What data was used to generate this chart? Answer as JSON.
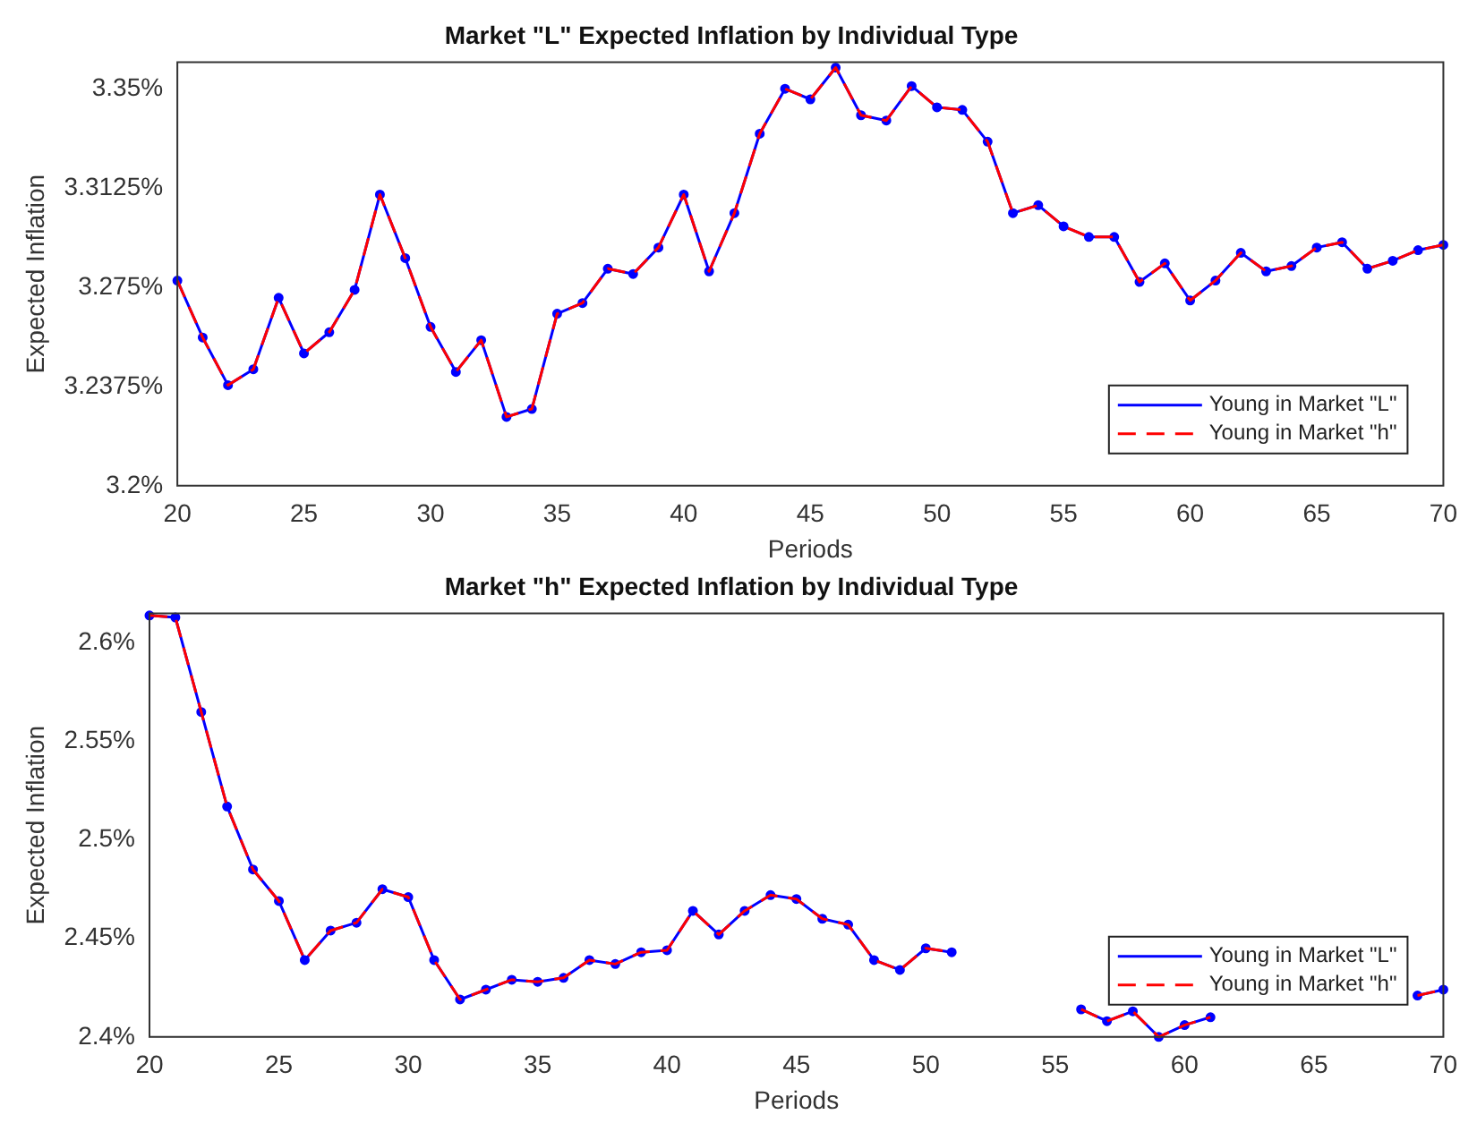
{
  "chart_data": [
    {
      "type": "line",
      "title": "Market \"L\" Expected Inflation by Individual Type",
      "xlabel": "Periods",
      "ylabel": "Expected Inflation",
      "x": [
        20,
        21,
        22,
        23,
        24,
        25,
        26,
        27,
        28,
        29,
        30,
        31,
        32,
        33,
        34,
        35,
        36,
        37,
        38,
        39,
        40,
        41,
        42,
        43,
        44,
        45,
        46,
        47,
        48,
        49,
        50,
        51,
        52,
        53,
        54,
        55,
        56,
        57,
        58,
        59,
        60,
        61,
        62,
        63,
        64,
        65,
        66,
        67,
        68,
        69,
        70
      ],
      "series": [
        {
          "name": "Young in Market \"L\"",
          "color": "#0000ff",
          "marker": "circle",
          "line_style": "solid",
          "values": [
            3.2775,
            3.256,
            3.238,
            3.244,
            3.271,
            3.25,
            3.258,
            3.274,
            3.31,
            3.286,
            3.26,
            3.243,
            3.255,
            3.226,
            3.229,
            3.265,
            3.269,
            3.282,
            3.28,
            3.29,
            3.31,
            3.281,
            3.303,
            3.333,
            3.35,
            3.346,
            3.358,
            3.34,
            3.338,
            3.351,
            3.343,
            3.342,
            3.33,
            3.303,
            3.306,
            3.298,
            3.294,
            3.294,
            3.277,
            3.284,
            3.27,
            3.2775,
            3.288,
            3.281,
            3.283,
            3.29,
            3.292,
            3.282,
            3.285,
            3.289,
            3.291
          ]
        },
        {
          "name": "Young in Market \"h\"",
          "color": "#ff0000",
          "marker": "none",
          "line_style": "dashed",
          "values": [
            3.2775,
            3.256,
            3.238,
            3.244,
            3.271,
            3.25,
            3.258,
            3.274,
            3.31,
            3.286,
            3.26,
            3.243,
            3.255,
            3.226,
            3.229,
            3.265,
            3.269,
            3.282,
            3.28,
            3.29,
            3.31,
            3.281,
            3.303,
            3.333,
            3.35,
            3.346,
            3.358,
            3.34,
            3.338,
            3.351,
            3.343,
            3.342,
            3.33,
            3.303,
            3.306,
            3.298,
            3.294,
            3.294,
            3.277,
            3.284,
            3.27,
            3.2775,
            3.288,
            3.281,
            3.283,
            3.29,
            3.292,
            3.282,
            3.285,
            3.289,
            3.291
          ]
        }
      ],
      "xlim": [
        20,
        70
      ],
      "xticks": [
        20,
        25,
        30,
        35,
        40,
        45,
        50,
        55,
        60,
        65,
        70
      ],
      "ylim": [
        3.2,
        3.36
      ],
      "yticks": [
        {
          "value": 3.2,
          "label": "3.2%"
        },
        {
          "value": 3.2375,
          "label": "3.2375%"
        },
        {
          "value": 3.275,
          "label": "3.275%"
        },
        {
          "value": 3.3125,
          "label": "3.3125%"
        },
        {
          "value": 3.35,
          "label": "3.35%"
        }
      ],
      "grid": false,
      "legend": "bottom right"
    },
    {
      "type": "line",
      "title": "Market \"h\" Expected Inflation by Individual Type",
      "xlabel": "Periods",
      "ylabel": "Expected Inflation",
      "x": [
        20,
        21,
        22,
        23,
        24,
        25,
        26,
        27,
        28,
        29,
        30,
        31,
        32,
        33,
        34,
        35,
        36,
        37,
        38,
        39,
        40,
        41,
        42,
        43,
        44,
        45,
        46,
        47,
        48,
        49,
        50,
        51,
        52,
        53,
        54,
        55,
        56,
        57,
        58,
        59,
        60,
        61,
        62,
        63,
        64,
        65,
        66,
        67,
        68,
        69,
        70
      ],
      "series": [
        {
          "name": "Young in Market \"L\"",
          "color": "#0000ff",
          "marker": "circle",
          "line_style": "solid",
          "values": [
            2.614,
            2.613,
            2.565,
            2.517,
            2.485,
            2.469,
            2.439,
            2.454,
            2.458,
            2.475,
            2.471,
            2.439,
            2.419,
            2.424,
            2.429,
            2.428,
            2.43,
            2.439,
            2.437,
            2.443,
            2.444,
            2.464,
            2.452,
            2.464,
            2.472,
            2.47,
            2.46,
            2.457,
            2.439,
            2.434,
            2.445,
            2.443,
            null,
            null,
            null,
            null,
            2.414,
            2.408,
            2.413,
            2.4,
            2.406,
            2.41,
            null,
            null,
            null,
            null,
            null,
            null,
            null,
            2.421,
            2.424
          ]
        },
        {
          "name": "Young in Market \"h\"",
          "color": "#ff0000",
          "marker": "none",
          "line_style": "dashed",
          "values": [
            2.614,
            2.613,
            2.565,
            2.517,
            2.485,
            2.469,
            2.439,
            2.454,
            2.458,
            2.475,
            2.471,
            2.439,
            2.419,
            2.424,
            2.429,
            2.428,
            2.43,
            2.439,
            2.437,
            2.443,
            2.444,
            2.464,
            2.452,
            2.464,
            2.472,
            2.47,
            2.46,
            2.457,
            2.439,
            2.434,
            2.445,
            2.443,
            null,
            null,
            null,
            null,
            2.414,
            2.408,
            2.413,
            2.4,
            2.406,
            2.41,
            null,
            null,
            null,
            null,
            null,
            null,
            null,
            2.421,
            2.424
          ]
        }
      ],
      "xlim": [
        20,
        70
      ],
      "xticks": [
        20,
        25,
        30,
        35,
        40,
        45,
        50,
        55,
        60,
        65,
        70
      ],
      "ylim": [
        2.4,
        2.615
      ],
      "yticks": [
        {
          "value": 2.4,
          "label": "2.4%"
        },
        {
          "value": 2.45,
          "label": "2.45%"
        },
        {
          "value": 2.5,
          "label": "2.5%"
        },
        {
          "value": 2.55,
          "label": "2.55%"
        },
        {
          "value": 2.6,
          "label": "2.6%"
        }
      ],
      "grid": false,
      "legend": "bottom right"
    }
  ]
}
